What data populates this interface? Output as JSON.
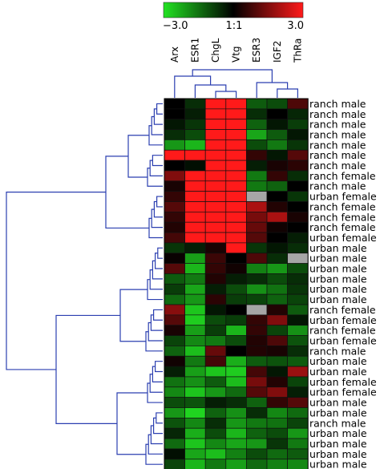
{
  "chart_data": {
    "type": "heatmap",
    "title": "",
    "color_scale": {
      "min": -3.0,
      "mid": 1,
      "max": 3.0,
      "tick_labels": [
        "−3.0",
        "1:1",
        "3.0"
      ],
      "low_color": "#22e322",
      "mid_color": "#000000",
      "high_color": "#ff1a1a",
      "missing_color": "#a6a6a6"
    },
    "columns": [
      "Arx",
      "ESR1",
      "ChgL",
      "Vtg",
      "ESR3",
      "IGF2",
      "ThRa"
    ],
    "rows": [
      "ranch male",
      "ranch male",
      "ranch male",
      "ranch male",
      "ranch male",
      "ranch male",
      "ranch male",
      "ranch female",
      "ranch male",
      "urban female",
      "ranch female",
      "ranch female",
      "ranch female",
      "urban female",
      "urban male",
      "urban male",
      "urban male",
      "urban male",
      "urban male",
      "urban male",
      "ranch female",
      "urban female",
      "ranch female",
      "urban female",
      "ranch male",
      "urban male",
      "urban male",
      "urban female",
      "urban female",
      "urban male",
      "urban male",
      "ranch male",
      "urban male",
      "urban male",
      "urban male",
      "urban male"
    ],
    "values": [
      [
        0.0,
        -0.6,
        3.0,
        3.0,
        -1.2,
        -1.0,
        0.9
      ],
      [
        0.0,
        -0.4,
        3.0,
        3.0,
        -0.6,
        0.0,
        -0.5
      ],
      [
        -0.3,
        -0.7,
        3.0,
        3.0,
        -1.3,
        -0.3,
        -0.8
      ],
      [
        -0.6,
        -1.0,
        3.0,
        3.0,
        -2.2,
        -1.2,
        -0.3
      ],
      [
        -2.0,
        -2.4,
        3.0,
        3.0,
        -1.0,
        -1.6,
        -0.7
      ],
      [
        3.0,
        3.0,
        3.0,
        3.0,
        0.6,
        -0.3,
        1.0
      ],
      [
        0.0,
        -0.2,
        3.0,
        3.0,
        -0.4,
        0.3,
        0.5
      ],
      [
        1.5,
        3.0,
        3.0,
        3.0,
        -1.6,
        0.6,
        -0.6
      ],
      [
        0.3,
        3.0,
        3.0,
        3.0,
        -1.6,
        -1.3,
        0.0
      ],
      [
        0.6,
        3.0,
        3.0,
        3.0,
        null,
        0.0,
        -0.7
      ],
      [
        1.0,
        3.0,
        3.0,
        3.0,
        2.0,
        0.4,
        0.0
      ],
      [
        0.6,
        3.0,
        3.0,
        3.0,
        1.4,
        2.0,
        0.3
      ],
      [
        0.4,
        3.0,
        3.0,
        3.0,
        1.2,
        0.2,
        0.0
      ],
      [
        0.8,
        3.0,
        3.0,
        3.0,
        1.0,
        0.0,
        -0.4
      ],
      [
        -0.7,
        -0.4,
        0.3,
        3.0,
        -0.7,
        -0.3,
        -0.6
      ],
      [
        0.1,
        -2.1,
        0.7,
        0.0,
        0.9,
        -0.6,
        null
      ],
      [
        1.0,
        -2.4,
        0.6,
        0.2,
        -1.7,
        -2.0,
        -1.0
      ],
      [
        -1.2,
        -1.6,
        0.4,
        -0.4,
        -0.6,
        -1.0,
        -0.6
      ],
      [
        -0.8,
        -2.2,
        -0.4,
        -1.0,
        -1.9,
        -1.5,
        -0.7
      ],
      [
        -1.4,
        -2.0,
        0.5,
        -0.8,
        -0.9,
        -1.3,
        -0.9
      ],
      [
        1.6,
        -2.6,
        -0.3,
        0.0,
        null,
        0.4,
        -1.2
      ],
      [
        1.0,
        -2.7,
        -1.0,
        -0.8,
        0.6,
        1.5,
        -0.3
      ],
      [
        0.3,
        -2.1,
        -0.8,
        -2.4,
        0.6,
        -0.9,
        -1.9
      ],
      [
        -0.9,
        -1.8,
        -1.6,
        -1.0,
        0.4,
        0.9,
        -1.1
      ],
      [
        -1.3,
        -2.5,
        1.2,
        0.0,
        0.4,
        0.3,
        -0.6
      ],
      [
        0.2,
        -1.6,
        0.8,
        -2.3,
        -1.2,
        -1.1,
        -1.2
      ],
      [
        -0.4,
        -2.1,
        -2.6,
        -2.7,
        0.8,
        -0.3,
        1.8
      ],
      [
        -1.5,
        -1.9,
        -1.2,
        -2.5,
        1.4,
        0.4,
        -0.9
      ],
      [
        -1.8,
        -2.6,
        -2.0,
        -1.4,
        1.0,
        1.5,
        -0.4
      ],
      [
        -1.0,
        -1.1,
        -0.4,
        -0.6,
        -1.3,
        0.6,
        1.0
      ],
      [
        -2.0,
        -2.8,
        -1.3,
        -1.9,
        -0.6,
        -1.8,
        -1.4
      ],
      [
        -1.1,
        -1.8,
        -0.6,
        -2.0,
        -1.6,
        -1.5,
        -0.9
      ],
      [
        -0.5,
        -2.3,
        -1.0,
        -2.4,
        -1.3,
        -1.0,
        -2.0
      ],
      [
        -1.4,
        -2.6,
        -1.8,
        -2.2,
        -2.0,
        -0.7,
        -1.6
      ],
      [
        -0.2,
        -2.2,
        -2.5,
        -1.7,
        -1.0,
        -1.4,
        -1.2
      ],
      [
        -0.9,
        -2.4,
        -1.6,
        -2.1,
        -1.4,
        -1.7,
        -1.8
      ]
    ]
  }
}
